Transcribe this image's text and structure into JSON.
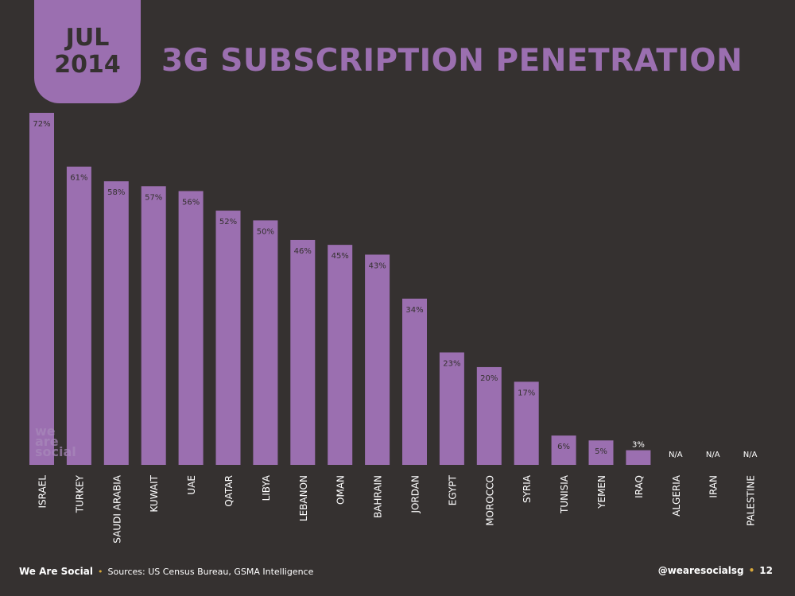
{
  "header": {
    "month": "JUL",
    "year": "2014",
    "title": "3G SUBSCRIPTION PENETRATION"
  },
  "watermark": [
    "we",
    "are",
    "social"
  ],
  "footer": {
    "brand": "We Are Social",
    "sources": "Sources: US Census Bureau, GSMA Intelligence",
    "handle": "@wearesocialsg",
    "page": "12"
  },
  "colors": {
    "background": "#353130",
    "bar": "#9b6fb0",
    "bar_label": "#353130",
    "text": "#ffffff",
    "accent_dot": "#d8a83a"
  },
  "chart_data": {
    "type": "bar",
    "title": "3G SUBSCRIPTION PENETRATION",
    "categories": [
      "ISRAEL",
      "TURKEY",
      "SAUDI ARABIA",
      "KUWAIT",
      "UAE",
      "QATAR",
      "LIBYA",
      "LEBANON",
      "OMAN",
      "BAHRAIN",
      "JORDAN",
      "EGYPT",
      "MOROCCO",
      "SYRIA",
      "TUNISIA",
      "YEMEN",
      "IRAQ",
      "ALGERIA",
      "IRAN",
      "PALESTINE"
    ],
    "values": [
      72,
      61,
      58,
      57,
      56,
      52,
      50,
      46,
      45,
      43,
      34,
      23,
      20,
      17,
      6,
      5,
      3,
      null,
      null,
      null
    ],
    "data_labels": [
      "72%",
      "61%",
      "58%",
      "57%",
      "56%",
      "52%",
      "50%",
      "46%",
      "45%",
      "43%",
      "34%",
      "23%",
      "20%",
      "17%",
      "6%",
      "5%",
      "3%",
      "N/A",
      "N/A",
      "N/A"
    ],
    "ylim": [
      0,
      72
    ],
    "grid": false,
    "legend": "none"
  }
}
